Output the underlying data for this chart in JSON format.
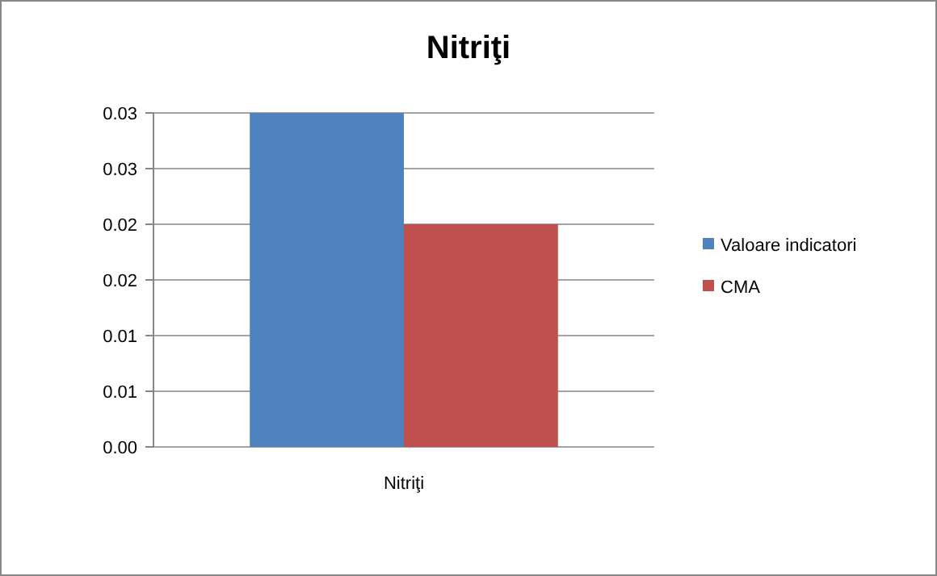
{
  "chart_data": {
    "type": "bar",
    "title": "Nitriţi",
    "categories": [
      "Nitriţi"
    ],
    "series": [
      {
        "name": "Valoare indicatori",
        "color": "#4f81bd",
        "values": [
          0.03
        ]
      },
      {
        "name": "CMA",
        "color": "#c0504d",
        "values": [
          0.02
        ]
      }
    ],
    "ylim": [
      0,
      0.03
    ],
    "yticks": [
      {
        "value": 0,
        "label": "0.00"
      },
      {
        "value": 0.005,
        "label": "0.01"
      },
      {
        "value": 0.01,
        "label": "0.01"
      },
      {
        "value": 0.015,
        "label": "0.02"
      },
      {
        "value": 0.02,
        "label": "0.02"
      },
      {
        "value": 0.025,
        "label": "0.03"
      },
      {
        "value": 0.03,
        "label": "0.03"
      }
    ],
    "grid": true,
    "legend": "right"
  }
}
